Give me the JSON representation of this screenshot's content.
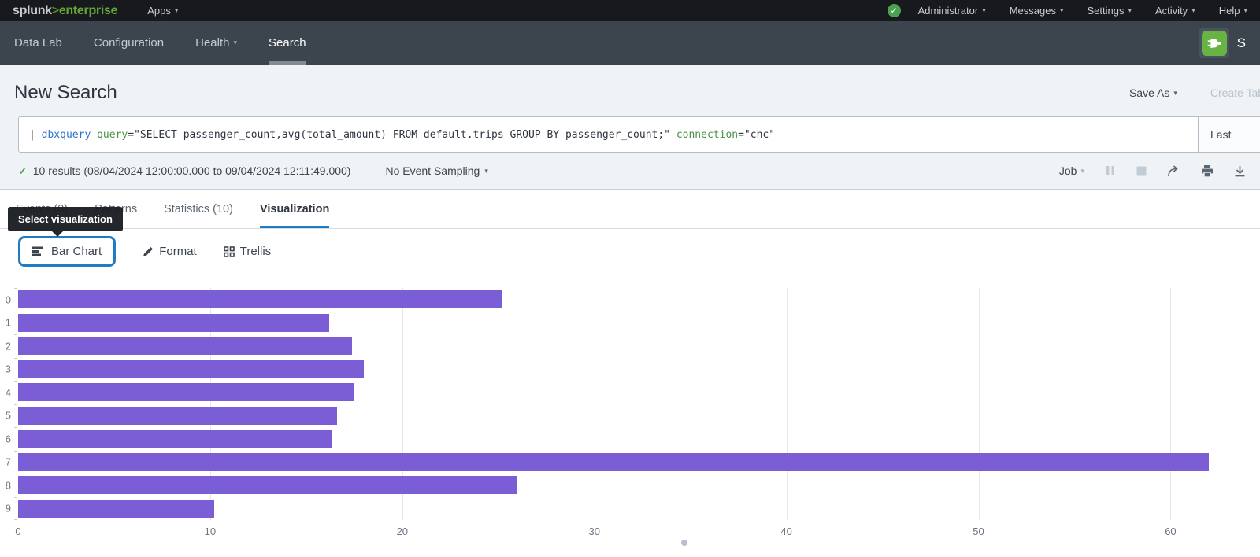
{
  "icons": {
    "caret_down": "▾",
    "check": "✓"
  },
  "topbar": {
    "logo": {
      "brand": "splunk",
      "gt": ">",
      "product": "enterprise"
    },
    "apps_label": "Apps",
    "menus": [
      {
        "label": "Administrator"
      },
      {
        "label": "Messages"
      },
      {
        "label": "Settings"
      },
      {
        "label": "Activity"
      },
      {
        "label": "Help"
      }
    ]
  },
  "appbar": {
    "items": [
      {
        "label": "Data Lab"
      },
      {
        "label": "Configuration"
      },
      {
        "label": "Health"
      },
      {
        "label": "Search"
      }
    ],
    "app_name_partial": "S"
  },
  "header": {
    "title": "New Search",
    "save_as_label": "Save As",
    "create_table_label": "Create Table"
  },
  "search": {
    "pipe": "| ",
    "command": "dbxquery",
    "arg1_key": "query",
    "arg1_rest": "=\"SELECT passenger_count,avg(total_amount) FROM default.trips GROUP BY passenger_count;\" ",
    "arg2_key": "connection",
    "arg2_rest": "=\"chc\"",
    "time_range_label": "Last"
  },
  "results_bar": {
    "summary": "10 results (08/04/2024 12:00:00.000 to 09/04/2024 12:11:49.000)",
    "sampling_label": "No Event Sampling",
    "job_label": "Job"
  },
  "tabs": [
    {
      "label": "Events (0)"
    },
    {
      "label": "Patterns"
    },
    {
      "label": "Statistics (10)"
    },
    {
      "label": "Visualization"
    }
  ],
  "tooltip": {
    "text": "Select visualization"
  },
  "viz_toolbar": {
    "chart_type_label": "Bar Chart",
    "format_label": "Format",
    "trellis_label": "Trellis"
  },
  "chart_data": {
    "type": "bar",
    "orientation": "horizontal",
    "title": "",
    "xlabel": "",
    "ylabel": "",
    "series_name": "avg(total_amount)",
    "categories": [
      "0",
      "1",
      "2",
      "3",
      "4",
      "5",
      "6",
      "7",
      "8",
      "9"
    ],
    "values": [
      25.2,
      16.2,
      17.4,
      18.0,
      17.5,
      16.6,
      16.3,
      62.0,
      26.0,
      10.2
    ],
    "x_ticks": [
      0,
      10,
      20,
      30,
      40,
      50,
      60
    ],
    "xlim": [
      0,
      64
    ],
    "grid": true,
    "legend": false,
    "bar_color": "#7b5ed5"
  }
}
